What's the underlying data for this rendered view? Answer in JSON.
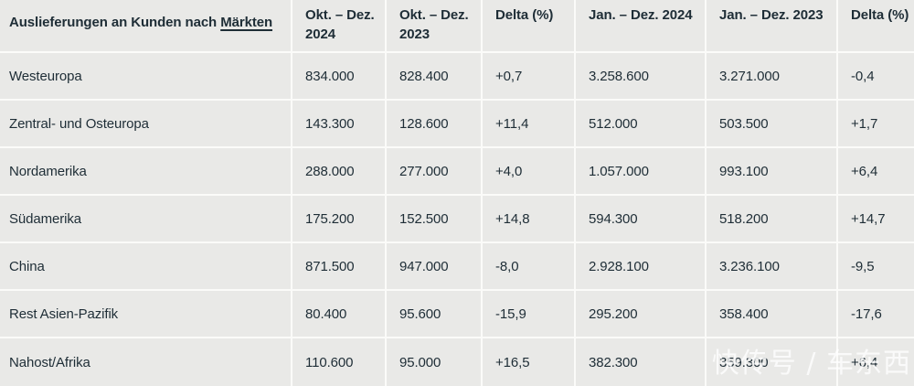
{
  "colors": {
    "cell_background": "#e9e9e7",
    "separator": "#fbfbf9",
    "text": "#1e2d36",
    "watermark": "rgba(255,255,255,0.78)"
  },
  "chart_data": {
    "type": "table",
    "title": "Auslieferungen an Kunden nach Märkten",
    "title_prefix": "Auslieferungen an Kunden nach ",
    "title_link": "Märkten",
    "columns": [
      "Okt. – Dez. 2024",
      "Okt. – Dez. 2023",
      "Delta (%)",
      "Jan. – Dez. 2024",
      "Jan. – Dez. 2023",
      "Delta (%)"
    ],
    "rows": [
      {
        "market": "Westeuropa",
        "q4_2024": "834.000",
        "q4_2023": "828.400",
        "delta_q4": "+0,7",
        "fy_2024": "3.258.600",
        "fy_2023": "3.271.000",
        "delta_fy": "-0,4"
      },
      {
        "market": "Zentral- und Osteuropa",
        "q4_2024": "143.300",
        "q4_2023": "128.600",
        "delta_q4": "+11,4",
        "fy_2024": "512.000",
        "fy_2023": "503.500",
        "delta_fy": "+1,7"
      },
      {
        "market": "Nordamerika",
        "q4_2024": "288.000",
        "q4_2023": "277.000",
        "delta_q4": "+4,0",
        "fy_2024": "1.057.000",
        "fy_2023": "993.100",
        "delta_fy": "+6,4"
      },
      {
        "market": "Südamerika",
        "q4_2024": "175.200",
        "q4_2023": "152.500",
        "delta_q4": "+14,8",
        "fy_2024": "594.300",
        "fy_2023": "518.200",
        "delta_fy": "+14,7"
      },
      {
        "market": "China",
        "q4_2024": "871.500",
        "q4_2023": "947.000",
        "delta_q4": "-8,0",
        "fy_2024": "2.928.100",
        "fy_2023": "3.236.100",
        "delta_fy": "-9,5"
      },
      {
        "market": "Rest Asien-Pazifik",
        "q4_2024": "80.400",
        "q4_2023": "95.600",
        "delta_q4": "-15,9",
        "fy_2024": "295.200",
        "fy_2023": "358.400",
        "delta_fy": "-17,6"
      },
      {
        "market": "Nahost/Afrika",
        "q4_2024": "110.600",
        "q4_2023": "95.000",
        "delta_q4": "+16,5",
        "fy_2024": "382.300",
        "fy_2023": "359.300",
        "delta_fy": "+6,4"
      }
    ]
  },
  "watermark": {
    "text": "快传号 / 车东西"
  }
}
